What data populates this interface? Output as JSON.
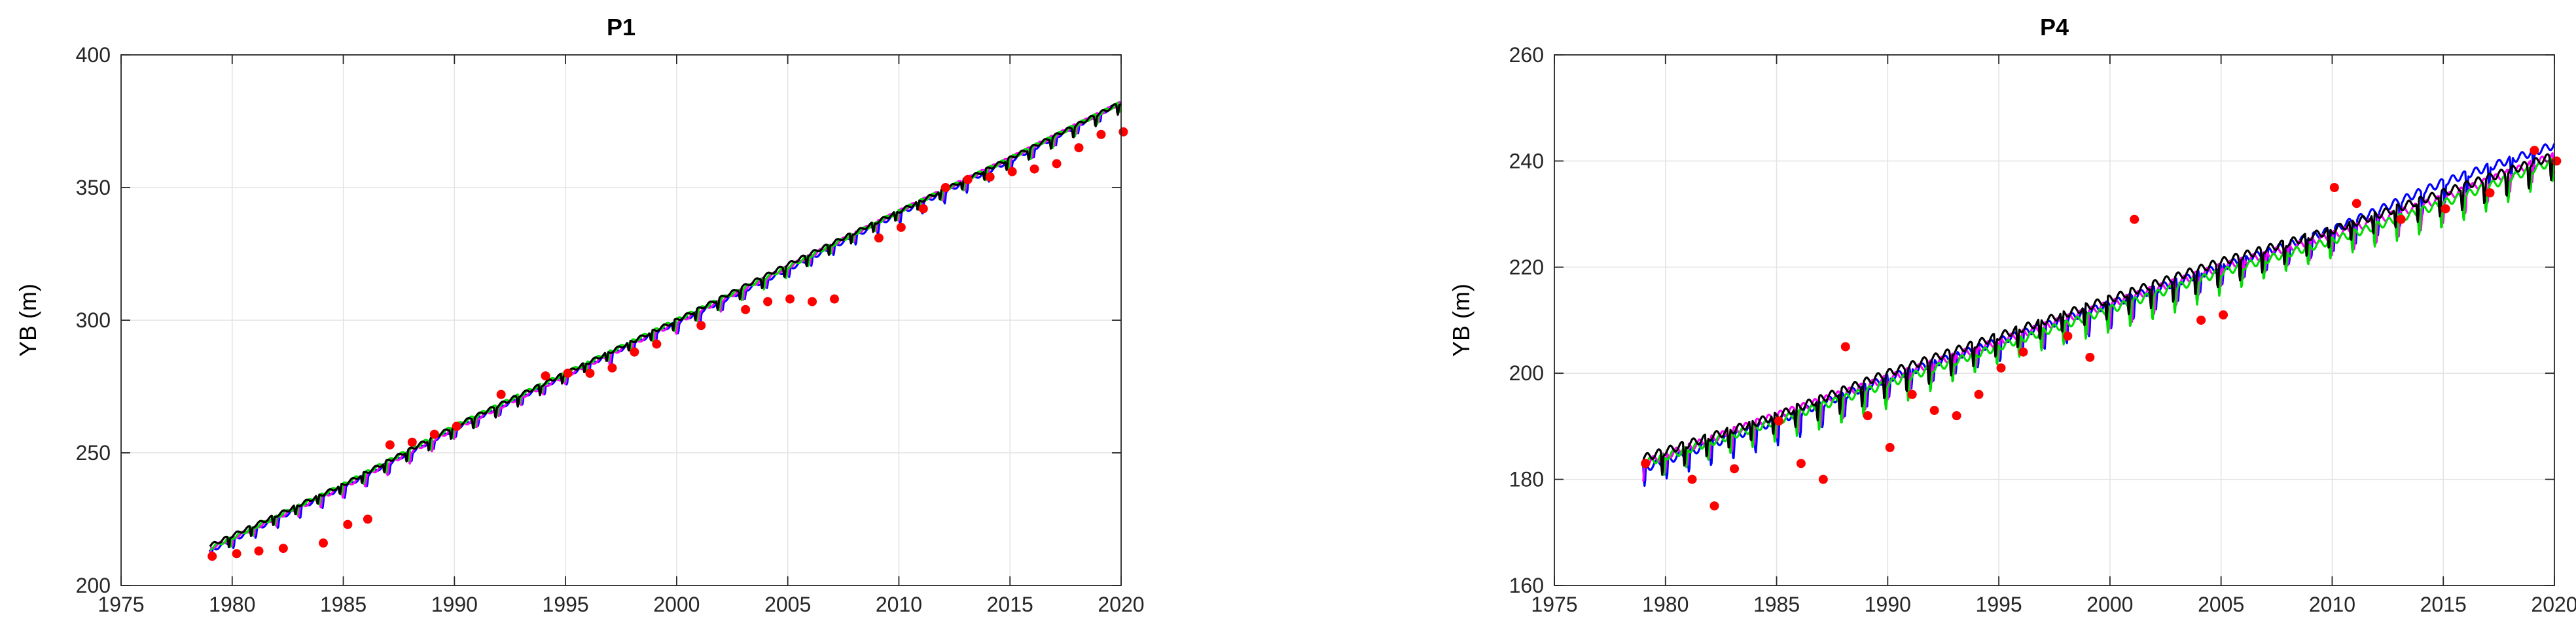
{
  "chart_data": [
    {
      "type": "line",
      "title": "P1",
      "xlabel": "",
      "ylabel": "YB (m)",
      "xlim": [
        1975,
        2020
      ],
      "ylim": [
        200,
        400
      ],
      "xticks": [
        1975,
        1980,
        1985,
        1990,
        1995,
        2000,
        2005,
        2010,
        2015,
        2020
      ],
      "yticks": [
        200,
        250,
        300,
        350,
        400
      ],
      "grid": true,
      "series": [
        {
          "color": "#0000ff",
          "style": "line",
          "x": [
            1979,
            1985,
            1990,
            1995,
            2000,
            2005,
            2010,
            2015,
            2020
          ],
          "y": [
            213,
            237,
            259,
            279,
            299,
            319,
            340,
            360,
            382
          ]
        },
        {
          "color": "#ff00ff",
          "style": "line",
          "x": [
            1979,
            1985,
            1990,
            1995,
            2000,
            2005,
            2010,
            2015,
            2020
          ],
          "y": [
            214,
            237,
            259,
            279,
            299,
            320,
            341,
            361,
            382
          ]
        },
        {
          "color": "#00dd00",
          "style": "line",
          "x": [
            1979,
            1985,
            1990,
            1995,
            2000,
            2005,
            2010,
            2015,
            2020
          ],
          "y": [
            214,
            238,
            260,
            280,
            300,
            320,
            341,
            361,
            382
          ]
        },
        {
          "color": "#000000",
          "style": "line",
          "x": [
            1979,
            1985,
            1990,
            1995,
            2000,
            2005,
            2010,
            2015,
            2020
          ],
          "y": [
            215,
            238,
            260,
            280,
            300,
            321,
            341,
            361,
            382
          ]
        },
        {
          "color": "#ff0000",
          "style": "points",
          "x": [
            1979.1,
            1980.2,
            1981.2,
            1982.3,
            1984.1,
            1985.2,
            1986.1,
            1987.1,
            1988.1,
            1989.1,
            1990.1,
            1992.1,
            1994.1,
            1995.1,
            1996.1,
            1997.1,
            1998.1,
            1999.1,
            2001.1,
            2003.1,
            2004.1,
            2005.1,
            2006.1,
            2007.1,
            2009.1,
            2010.1,
            2011.1,
            2012.1,
            2013.1,
            2014.1,
            2015.1,
            2016.1,
            2017.1,
            2018.1,
            2019.1,
            2020.1
          ],
          "y": [
            211,
            212,
            213,
            214,
            216,
            223,
            225,
            253,
            254,
            257,
            260,
            272,
            279,
            280,
            280,
            282,
            288,
            291,
            298,
            304,
            307,
            308,
            307,
            308,
            331,
            335,
            342,
            350,
            353,
            354,
            356,
            357,
            359,
            365,
            370,
            371
          ]
        }
      ]
    },
    {
      "type": "line",
      "title": "P4",
      "xlabel": "",
      "ylabel": "YB (m)",
      "xlim": [
        1975,
        2020
      ],
      "ylim": [
        160,
        260
      ],
      "xticks": [
        1975,
        1980,
        1985,
        1990,
        1995,
        2000,
        2005,
        2010,
        2015,
        2020
      ],
      "yticks": [
        160,
        180,
        200,
        220,
        240,
        260
      ],
      "grid": true,
      "series": [
        {
          "color": "#0000ff",
          "style": "line",
          "x": [
            1979,
            1985,
            1990,
            1995,
            2000,
            2005,
            2010,
            2015,
            2020
          ],
          "y": [
            182,
            191,
            199,
            206,
            213,
            220,
            227,
            236,
            243
          ]
        },
        {
          "color": "#ff00ff",
          "style": "line",
          "x": [
            1979,
            1985,
            1990,
            1995,
            2000,
            2005,
            2010,
            2015,
            2020
          ],
          "y": [
            183,
            192,
            199,
            206,
            213,
            220,
            226,
            233,
            241
          ]
        },
        {
          "color": "#00dd00",
          "style": "line",
          "x": [
            1979,
            1985,
            1990,
            1995,
            2000,
            2005,
            2010,
            2015,
            2020
          ],
          "y": [
            183,
            191,
            198,
            205,
            212,
            219,
            225,
            232,
            240
          ]
        },
        {
          "color": "#000000",
          "style": "line",
          "x": [
            1979,
            1985,
            1990,
            1995,
            2000,
            2005,
            2010,
            2015,
            2020
          ],
          "y": [
            184,
            192,
            200,
            207,
            214,
            221,
            227,
            234,
            241
          ]
        },
        {
          "color": "#ff0000",
          "style": "points",
          "x": [
            1979.1,
            1981.2,
            1982.2,
            1983.1,
            1985.1,
            1986.1,
            1987.1,
            1988.1,
            1989.1,
            1990.1,
            1991.1,
            1992.1,
            1993.1,
            1994.1,
            1995.1,
            1996.1,
            1998.1,
            1999.1,
            2001.1,
            2004.1,
            2005.1,
            2010.1,
            2011.1,
            2013.1,
            2015.1,
            2017.1,
            2019.1,
            2020.1
          ],
          "y": [
            183,
            180,
            175,
            182,
            191,
            183,
            180,
            205,
            192,
            186,
            196,
            193,
            192,
            196,
            201,
            204,
            207,
            203,
            229,
            210,
            211,
            235,
            232,
            229,
            231,
            234,
            242,
            240
          ]
        }
      ]
    }
  ]
}
